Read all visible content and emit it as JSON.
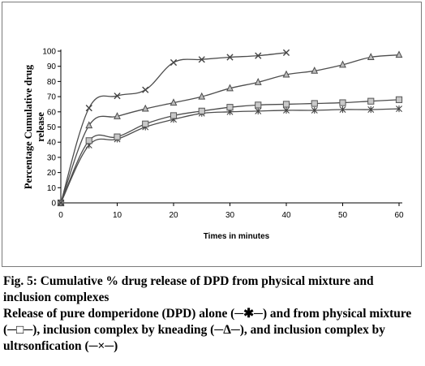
{
  "chart_data": {
    "type": "line",
    "title": "",
    "xlabel": "Times in minutes",
    "ylabel_lines": [
      "Percentage Cumulative drug",
      "release"
    ],
    "xlim": [
      0,
      60
    ],
    "ylim": [
      0,
      100
    ],
    "x_ticks": [
      0,
      10,
      20,
      30,
      40,
      50,
      60
    ],
    "y_ticks": [
      0,
      10,
      20,
      30,
      40,
      50,
      60,
      70,
      80,
      90,
      100
    ],
    "grid": false,
    "line_color": "#4d4d4d",
    "series": [
      {
        "marker": "star",
        "x": [
          0,
          5,
          10,
          15,
          20,
          25,
          30,
          35,
          40,
          45,
          50,
          55,
          60
        ],
        "values": [
          0,
          38,
          42,
          50,
          55,
          59,
          60,
          60.5,
          61,
          61,
          61.5,
          61.5,
          62
        ]
      },
      {
        "marker": "square",
        "x": [
          0,
          5,
          10,
          15,
          20,
          25,
          30,
          35,
          40,
          45,
          50,
          55,
          60
        ],
        "values": [
          0,
          41,
          43.5,
          52,
          57.5,
          60.5,
          63,
          64.5,
          65,
          65.5,
          66,
          67,
          68
        ]
      },
      {
        "marker": "triangle",
        "x": [
          0,
          5,
          10,
          15,
          20,
          25,
          30,
          35,
          40,
          45,
          50,
          55,
          60
        ],
        "values": [
          0,
          51,
          57,
          62,
          66,
          70,
          75.5,
          79.5,
          84.5,
          87,
          91,
          96,
          97.5
        ]
      },
      {
        "marker": "x",
        "x": [
          0,
          5,
          10,
          15,
          20,
          25,
          30,
          35,
          40
        ],
        "values": [
          0,
          62.5,
          70.5,
          74.5,
          92.5,
          94.5,
          96,
          97,
          99
        ]
      }
    ]
  },
  "caption": {
    "title": "Fig. 5: Cumulative % drug release of DPD from physical mixture and inclusion complexes",
    "body": "Release of pure domperidone (DPD) alone (─✱─) and from physical mixture (─□─), inclusion complex by kneading (─Δ─), and inclusion complex by ultrsonfication (─×─)"
  }
}
